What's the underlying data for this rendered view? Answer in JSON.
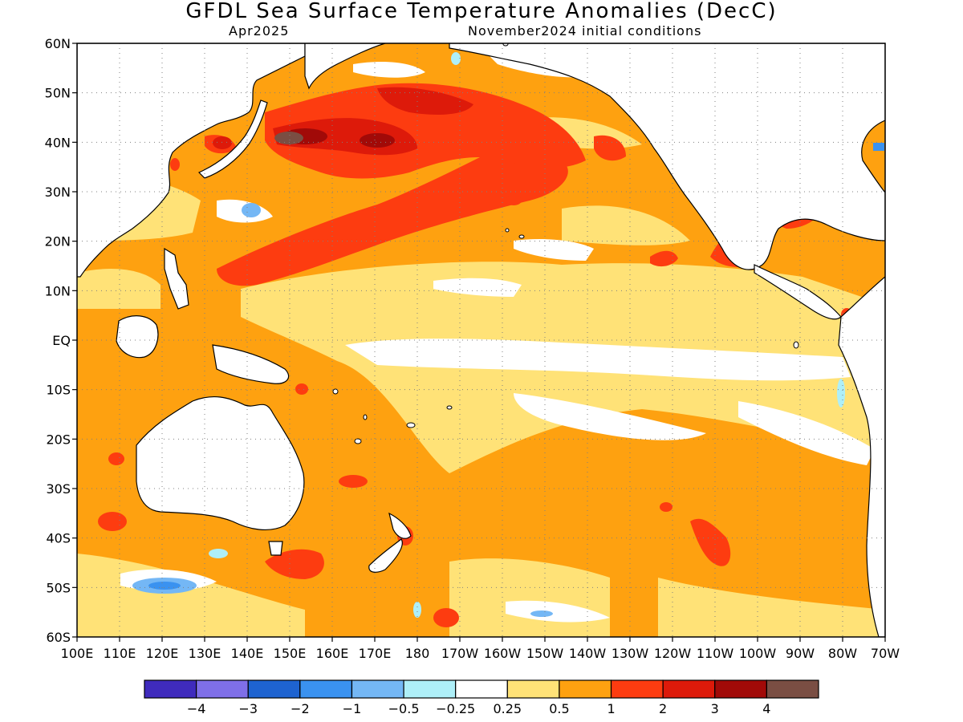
{
  "title": "GFDL Sea Surface Temperature Anomalies (DecC)",
  "subtitle_left": "Apr2025",
  "subtitle_right": "November2024 initial conditions",
  "lat_labels": [
    "60N",
    "50N",
    "40N",
    "30N",
    "20N",
    "10N",
    "EQ",
    "10S",
    "20S",
    "30S",
    "40S",
    "50S",
    "60S"
  ],
  "lon_labels": [
    "100E",
    "110E",
    "120E",
    "130E",
    "140E",
    "150E",
    "160E",
    "170E",
    "180",
    "170W",
    "160W",
    "150W",
    "140W",
    "130W",
    "120W",
    "110W",
    "100W",
    "90W",
    "80W",
    "70W"
  ],
  "colorbar": {
    "colors": [
      "#3f2bbd",
      "#7f6fe8",
      "#1e63d0",
      "#3a92f0",
      "#74b7f5",
      "#aeeff8",
      "#ffffff",
      "#ffe277",
      "#fea110",
      "#fd3c10",
      "#dd1a0a",
      "#a10a08",
      "#7a4e43"
    ],
    "labels": [
      "−4",
      "−3",
      "−2",
      "−1",
      "−0.5",
      "−0.25",
      "0.25",
      "0.5",
      "1",
      "2",
      "3",
      "4"
    ]
  }
}
